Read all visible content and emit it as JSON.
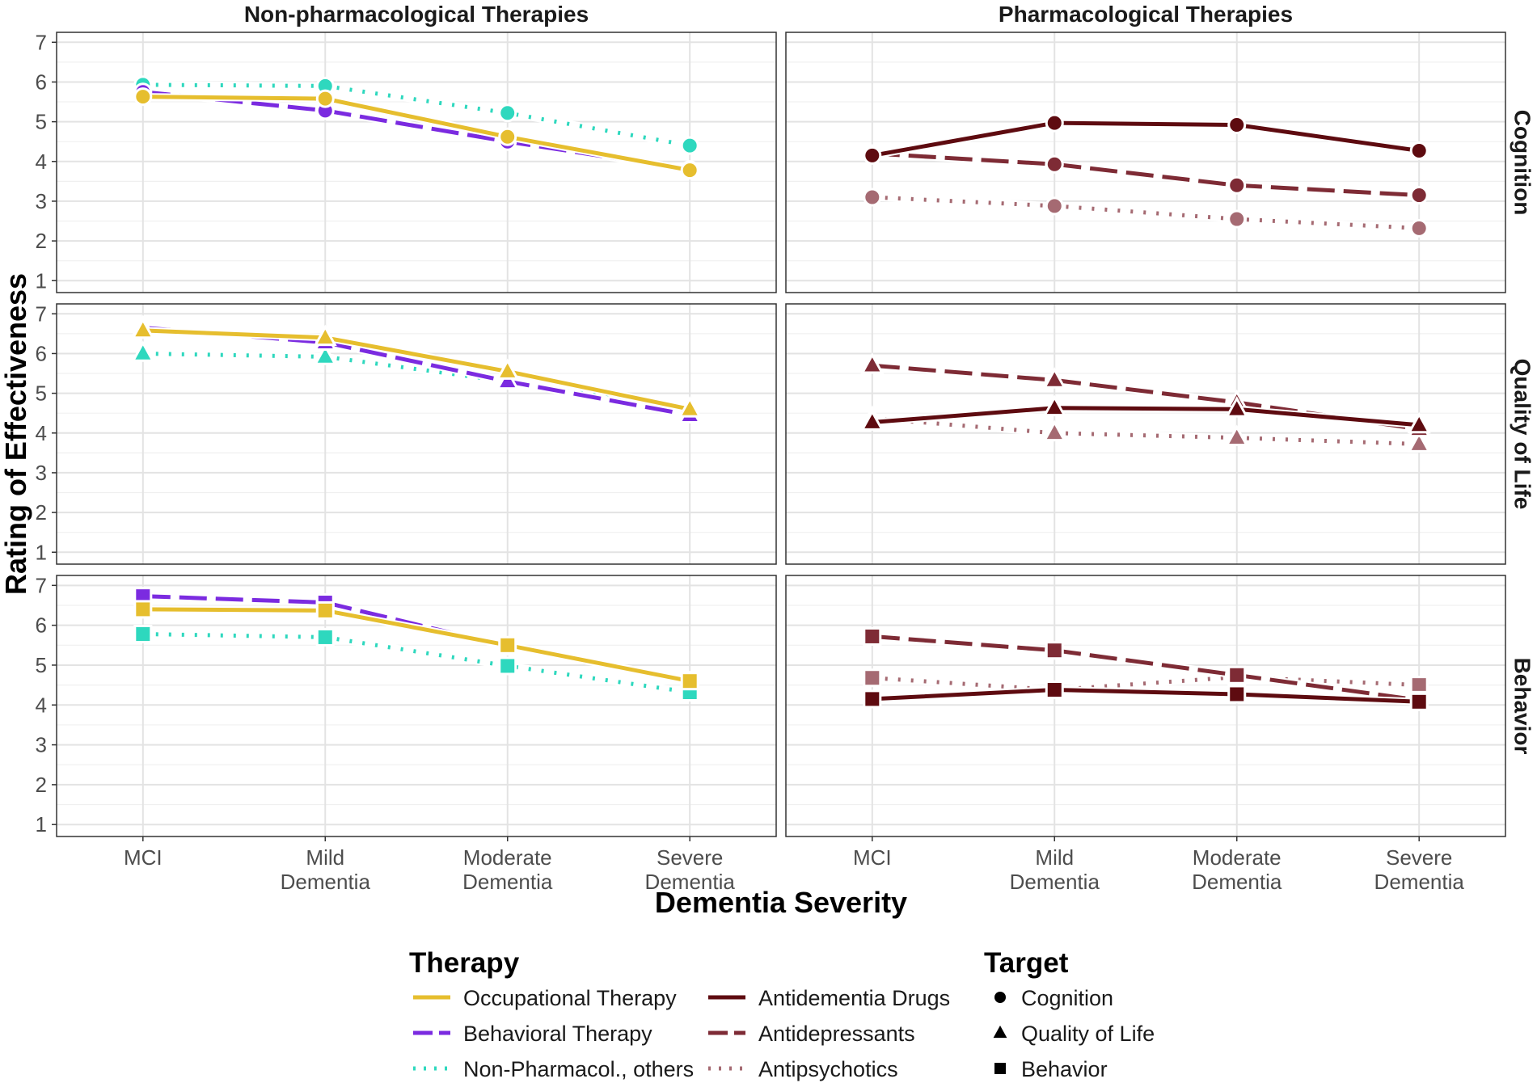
{
  "chart_data": {
    "type": "line",
    "y_axis_label": "Rating of Effectiveness",
    "x_axis_label": "Dementia Severity",
    "categories": [
      [
        "MCI"
      ],
      [
        "Mild",
        "Dementia"
      ],
      [
        "Moderate",
        "Dementia"
      ],
      [
        "Severe",
        "Dementia"
      ]
    ],
    "y_ticks": [
      1,
      2,
      3,
      4,
      5,
      6,
      7
    ],
    "ylim": [
      0.7,
      7.25
    ],
    "columns": [
      {
        "key": "non",
        "title": "Non-pharmacological Therapies"
      },
      {
        "key": "pharm",
        "title": "Pharmacological Therapies"
      }
    ],
    "rows": [
      {
        "key": "cognition",
        "title": "Cognition",
        "shape": "circle"
      },
      {
        "key": "qol",
        "title": "Quality of Life",
        "shape": "triangle"
      },
      {
        "key": "behavior",
        "title": "Behavior",
        "shape": "square"
      }
    ],
    "therapies": [
      {
        "key": "ot",
        "name": "Occupational Therapy",
        "color": "#E6BE2E",
        "dash": "solid",
        "group": "non"
      },
      {
        "key": "bt",
        "name": "Behavioral Therapy",
        "color": "#7B2BE0",
        "dash": "longdash",
        "group": "non"
      },
      {
        "key": "npo",
        "name": "Non-Pharmacol., others",
        "color": "#2ED8BE",
        "dash": "dotted",
        "group": "non"
      },
      {
        "key": "ad",
        "name": "Antidementia Drugs",
        "color": "#5E0B10",
        "dash": "solid",
        "group": "pharm"
      },
      {
        "key": "adep",
        "name": "Antidepressants",
        "color": "#7E2B35",
        "dash": "longdash",
        "group": "pharm"
      },
      {
        "key": "aps",
        "name": "Antipsychotics",
        "color": "#A56A72",
        "dash": "dotted",
        "group": "pharm"
      }
    ],
    "series": [
      {
        "therapy": "ot",
        "panel": "cognition",
        "values": [
          5.63,
          5.58,
          4.62,
          3.78
        ]
      },
      {
        "therapy": "bt",
        "panel": "cognition",
        "values": [
          5.75,
          5.28,
          4.5,
          3.8
        ]
      },
      {
        "therapy": "npo",
        "panel": "cognition",
        "values": [
          5.93,
          5.9,
          5.22,
          4.4
        ]
      },
      {
        "therapy": "ot",
        "panel": "qol",
        "values": [
          6.58,
          6.4,
          5.55,
          4.6
        ]
      },
      {
        "therapy": "bt",
        "panel": "qol",
        "values": [
          6.65,
          6.28,
          5.3,
          4.45
        ]
      },
      {
        "therapy": "npo",
        "panel": "qol",
        "values": [
          6.0,
          5.92,
          5.3,
          4.57
        ]
      },
      {
        "therapy": "ot",
        "panel": "behavior",
        "values": [
          6.4,
          6.37,
          5.5,
          4.6
        ]
      },
      {
        "therapy": "bt",
        "panel": "behavior",
        "values": [
          6.73,
          6.57,
          5.47,
          4.62
        ]
      },
      {
        "therapy": "npo",
        "panel": "behavior",
        "values": [
          5.78,
          5.7,
          4.98,
          4.32
        ]
      },
      {
        "therapy": "ad",
        "panel": "cognition",
        "values": [
          4.15,
          4.97,
          4.92,
          4.27
        ]
      },
      {
        "therapy": "adep",
        "panel": "cognition",
        "values": [
          4.2,
          3.93,
          3.4,
          3.15
        ]
      },
      {
        "therapy": "aps",
        "panel": "cognition",
        "values": [
          3.1,
          2.88,
          2.55,
          2.32
        ]
      },
      {
        "therapy": "ad",
        "panel": "qol",
        "values": [
          4.27,
          4.63,
          4.6,
          4.2
        ]
      },
      {
        "therapy": "adep",
        "panel": "qol",
        "values": [
          5.7,
          5.33,
          4.77,
          4.1
        ]
      },
      {
        "therapy": "aps",
        "panel": "qol",
        "values": [
          4.37,
          4.0,
          3.88,
          3.72
        ]
      },
      {
        "therapy": "ad",
        "panel": "behavior",
        "values": [
          4.15,
          4.38,
          4.27,
          4.08
        ]
      },
      {
        "therapy": "adep",
        "panel": "behavior",
        "values": [
          5.72,
          5.37,
          4.75,
          4.12
        ]
      },
      {
        "therapy": "aps",
        "panel": "behavior",
        "values": [
          4.68,
          4.38,
          4.7,
          4.5
        ]
      }
    ],
    "legend": {
      "therapy_title": "Therapy",
      "target_title": "Target",
      "position": "bottom"
    }
  }
}
